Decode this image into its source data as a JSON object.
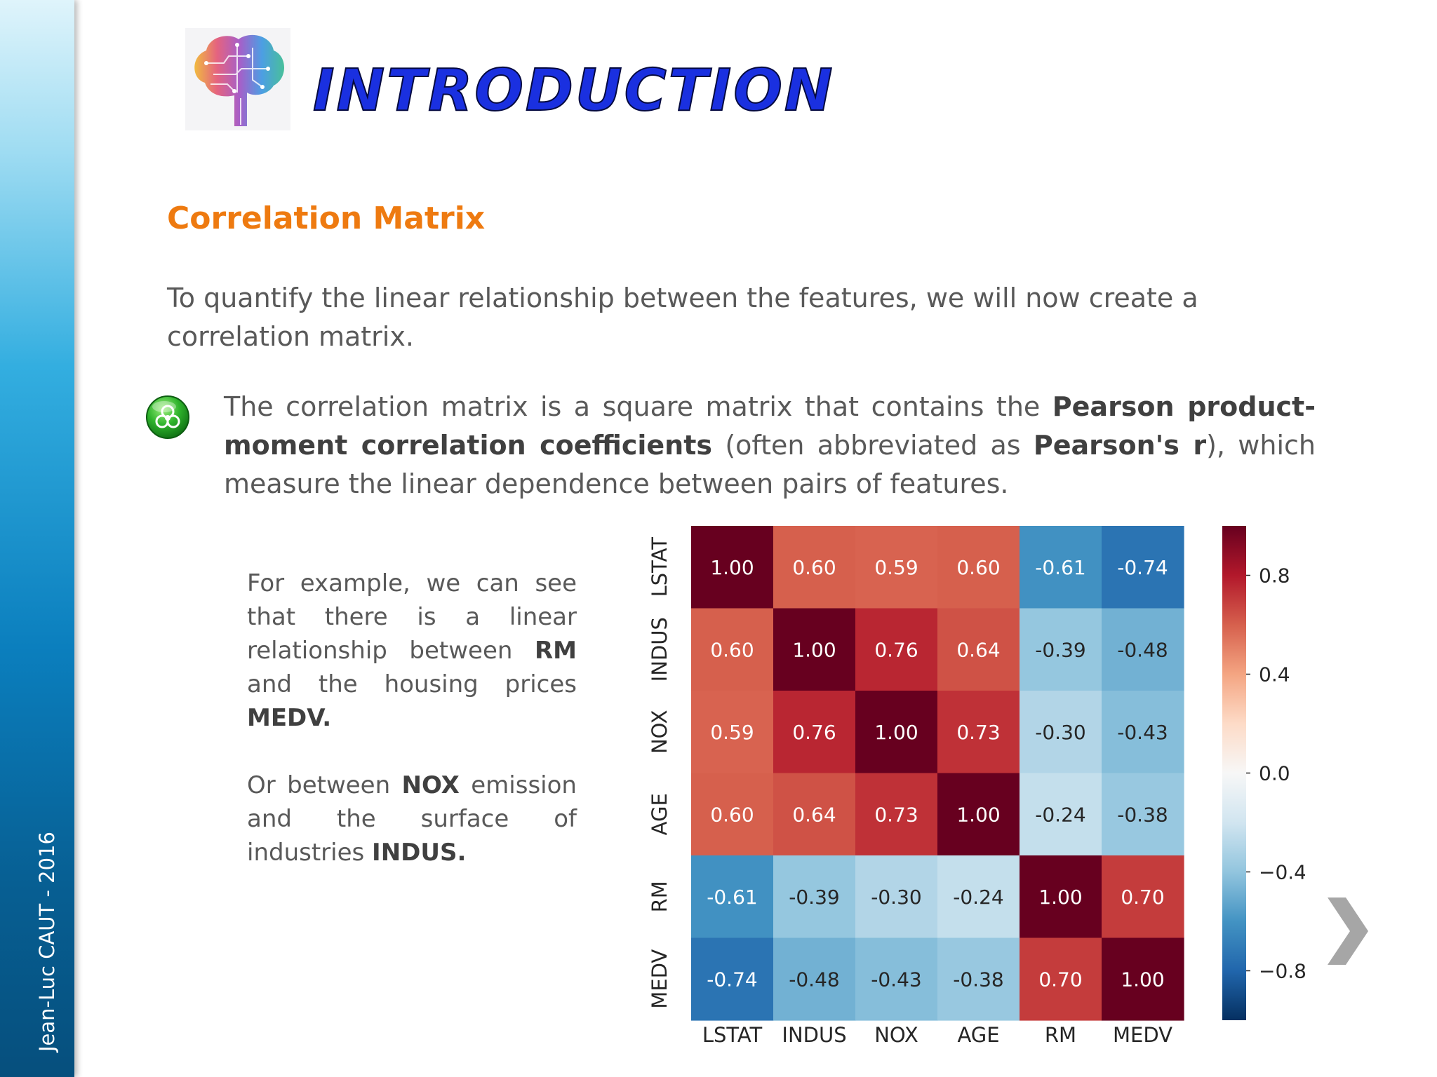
{
  "sidebar": {
    "author": "Jean-Luc CAUT - 2016"
  },
  "header": {
    "title": "INTRODUCTION",
    "logo_icon": "circuit-brain-icon"
  },
  "section": {
    "heading": "Correlation Matrix"
  },
  "intro": {
    "text": "To quantify the linear relationship between the features, we will now create a correlation matrix."
  },
  "bullet": {
    "icon": "biohazard-bullet-icon",
    "parts": [
      "The correlation matrix is a square matrix that contains the ",
      "Pearson product-moment correlation coefficients",
      " (often abbreviated as ",
      "Pearson's r",
      "), which measure the linear dependence between pairs of features."
    ]
  },
  "example": {
    "p1": [
      "For example, we can see that there is a linear relationship between ",
      "RM",
      " and the housing prices ",
      "MEDV."
    ],
    "p2": [
      "Or between ",
      "NOX",
      " emission and the surface of industries ",
      "INDUS."
    ]
  },
  "chart_data": {
    "type": "heatmap",
    "title": "",
    "x_labels": [
      "LSTAT",
      "INDUS",
      "NOX",
      "AGE",
      "RM",
      "MEDV"
    ],
    "y_labels": [
      "LSTAT",
      "INDUS",
      "NOX",
      "AGE",
      "RM",
      "MEDV"
    ],
    "values": [
      [
        1.0,
        0.6,
        0.59,
        0.6,
        -0.61,
        -0.74
      ],
      [
        0.6,
        1.0,
        0.76,
        0.64,
        -0.39,
        -0.48
      ],
      [
        0.59,
        0.76,
        1.0,
        0.73,
        -0.3,
        -0.43
      ],
      [
        0.6,
        0.64,
        0.73,
        1.0,
        -0.24,
        -0.38
      ],
      [
        -0.61,
        -0.39,
        -0.3,
        -0.24,
        1.0,
        0.7
      ],
      [
        -0.74,
        -0.48,
        -0.43,
        -0.38,
        0.7,
        1.0
      ]
    ],
    "labels": [
      [
        "1.00",
        "0.60",
        "0.59",
        "0.60",
        "-0.61",
        "-0.74"
      ],
      [
        "0.60",
        "1.00",
        "0.76",
        "0.64",
        "-0.39",
        "-0.48"
      ],
      [
        "0.59",
        "0.76",
        "1.00",
        "0.73",
        "-0.30",
        "-0.43"
      ],
      [
        "0.60",
        "0.64",
        "0.73",
        "1.00",
        "-0.24",
        "-0.38"
      ],
      [
        "-0.61",
        "-0.39",
        "-0.30",
        "-0.24",
        "1.00",
        "0.70"
      ],
      [
        "-0.74",
        "-0.48",
        "-0.43",
        "-0.38",
        "0.70",
        "1.00"
      ]
    ],
    "colorscale": "RdBu_r",
    "color_range": [
      -1.0,
      1.0
    ],
    "colorbar_ticks": [
      0.8,
      0.4,
      0.0,
      -0.4,
      -0.8
    ],
    "colorbar_tick_labels": [
      "0.8",
      "0.4",
      "0.0",
      "−0.4",
      "−0.8"
    ],
    "colorbar": "right"
  },
  "nav": {
    "next_icon": "chevron-right-icon"
  }
}
